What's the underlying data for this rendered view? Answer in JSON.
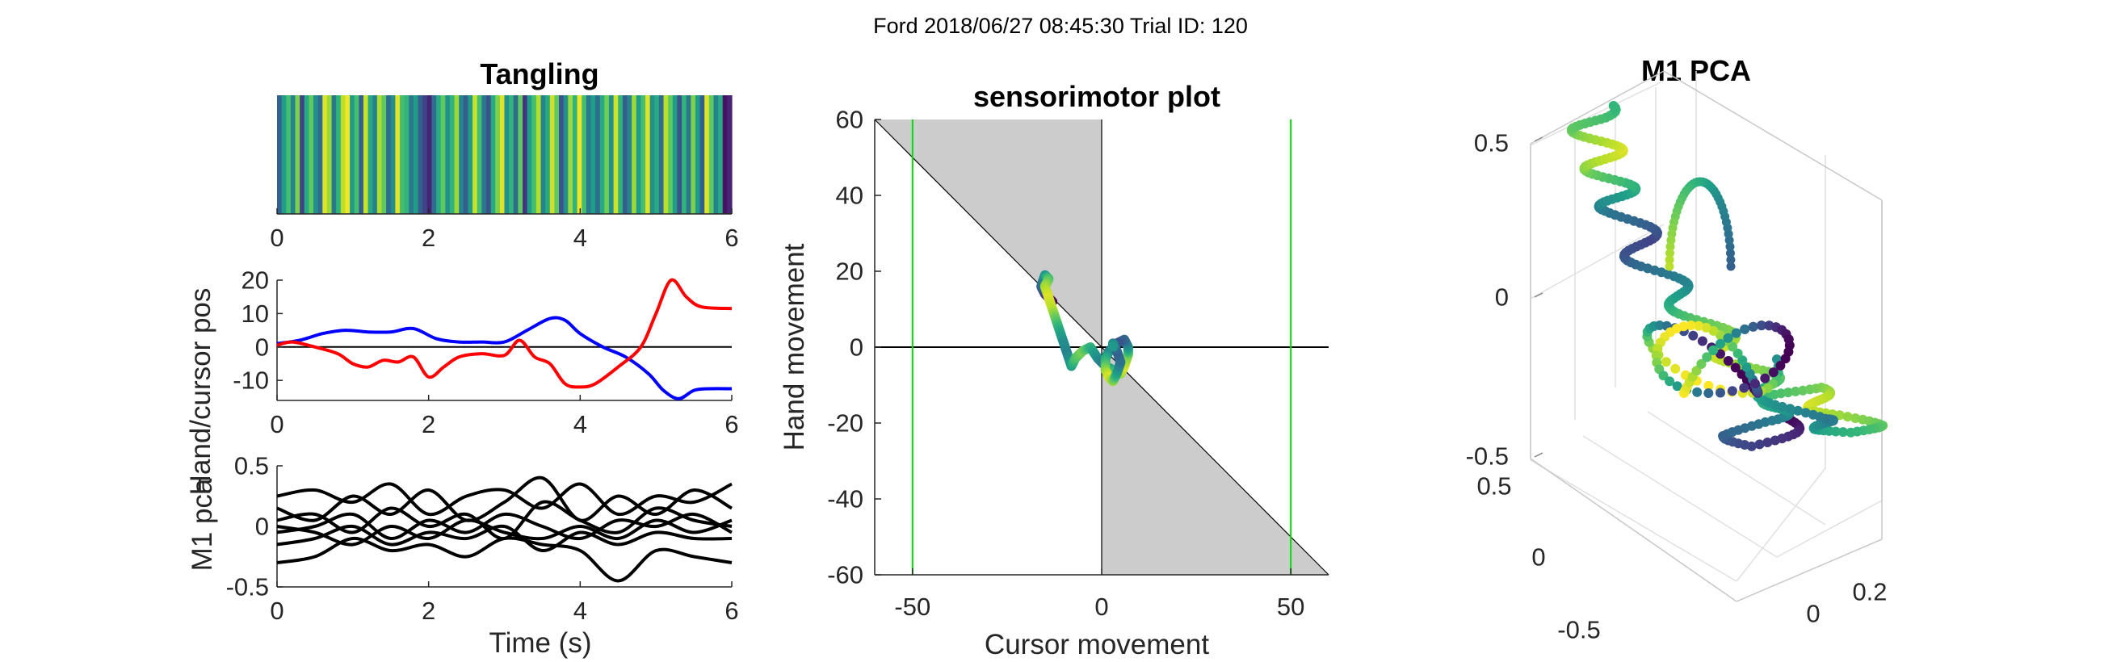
{
  "figure": {
    "suptitle": "Ford 2018/06/27 08:45:30 Trial ID: 120"
  },
  "chart_data": [
    {
      "type": "heatmap",
      "title": "Tangling",
      "xlabel": "",
      "ylabel": "",
      "xlim": [
        0,
        6
      ],
      "xticks": [
        "0",
        "2",
        "4",
        "6"
      ],
      "colormap": "viridis",
      "values": [
        0.3,
        0.55,
        0.7,
        0.45,
        0.8,
        0.2,
        0.6,
        0.75,
        0.5,
        0.35,
        0.95,
        0.85,
        0.4,
        0.65,
        0.9,
        0.98,
        0.55,
        0.7,
        0.3,
        0.92,
        0.6,
        0.45,
        0.88,
        0.75,
        0.35,
        0.5,
        0.96,
        0.7,
        0.65,
        0.4,
        0.55,
        0.3,
        0.2,
        0.1,
        0.35,
        0.6,
        0.75,
        0.5,
        0.65,
        0.85,
        0.45,
        0.3,
        0.55,
        0.92,
        0.7,
        0.4,
        0.25,
        0.6,
        0.8,
        0.95,
        0.5,
        0.65,
        0.35,
        0.75,
        0.15,
        0.55,
        0.7,
        0.88,
        0.45,
        0.6,
        0.93,
        0.75,
        0.25,
        0.5,
        0.85,
        0.65,
        0.98,
        0.7,
        0.4,
        0.55,
        0.35,
        0.6,
        0.78,
        0.5,
        0.93,
        0.65,
        0.3,
        0.45,
        0.85,
        0.55,
        0.7,
        0.95,
        0.5,
        0.6,
        0.35,
        0.9,
        0.75,
        0.55,
        0.25,
        0.65,
        0.4,
        0.8,
        0.55,
        0.3,
        0.95,
        0.75,
        0.45,
        0.6,
        0.05,
        0.1
      ]
    },
    {
      "type": "line",
      "title": "",
      "xlabel": "",
      "ylabel": "Hand/cursor pos",
      "xlim": [
        0,
        6
      ],
      "ylim": [
        -16,
        20
      ],
      "xticks": [
        "0",
        "2",
        "4",
        "6"
      ],
      "yticks": [
        -10,
        0,
        10,
        20
      ],
      "ytick_labels": [
        "-10",
        "0",
        "10",
        "20"
      ],
      "zero_line": true,
      "series": [
        {
          "color": "#0000ff",
          "x": [
            0,
            0.3,
            0.6,
            0.9,
            1.2,
            1.5,
            1.8,
            2.1,
            2.4,
            2.7,
            3.0,
            3.3,
            3.6,
            3.8,
            4.0,
            4.3,
            4.6,
            4.9,
            5.1,
            5.3,
            5.5,
            5.7,
            6.0
          ],
          "y": [
            1,
            2,
            4,
            5,
            4.5,
            4.5,
            5.5,
            2.5,
            1.5,
            1.5,
            1.5,
            5,
            8.5,
            8,
            4,
            0,
            -3,
            -8,
            -13,
            -15.5,
            -13,
            -12.5,
            -12.5
          ]
        },
        {
          "color": "#ff0000",
          "x": [
            0,
            0.2,
            0.5,
            0.8,
            1.0,
            1.2,
            1.4,
            1.6,
            1.8,
            2.0,
            2.2,
            2.4,
            2.7,
            3.0,
            3.2,
            3.4,
            3.6,
            3.8,
            4.0,
            4.2,
            4.5,
            4.8,
            5.0,
            5.2,
            5.4,
            5.6,
            6.0
          ],
          "y": [
            0.5,
            1.5,
            0,
            -2,
            -5,
            -6,
            -4,
            -4.5,
            -3,
            -9,
            -6,
            -3,
            -2,
            -2.5,
            2,
            -3,
            -5,
            -11,
            -12,
            -11,
            -6,
            0,
            10,
            20,
            15,
            12,
            11.5
          ]
        }
      ]
    },
    {
      "type": "line",
      "title": "",
      "xlabel": "Time (s)",
      "ylabel": "M1 pca",
      "xlim": [
        0,
        6
      ],
      "ylim": [
        -0.5,
        0.5
      ],
      "xticks": [
        "0",
        "2",
        "4",
        "6"
      ],
      "yticks": [
        -0.5,
        0,
        0.5
      ],
      "ytick_labels": [
        "-0.5",
        "0",
        "0.5"
      ],
      "series_color": "#000000",
      "x": [
        0,
        0.5,
        1.0,
        1.5,
        2.0,
        2.5,
        3.0,
        3.5,
        4.0,
        4.5,
        5.0,
        5.5,
        6.0
      ],
      "series": [
        {
          "values": [
            0.25,
            0.3,
            0.2,
            0.35,
            0.1,
            0.25,
            0.3,
            0.15,
            0.35,
            0.1,
            0.25,
            0.2,
            0.35
          ]
        },
        {
          "values": [
            0.15,
            0.05,
            0.25,
            0.1,
            0.3,
            0.05,
            0.2,
            0.4,
            0.05,
            0.25,
            0.1,
            0.3,
            0.15
          ]
        },
        {
          "values": [
            0.05,
            0.1,
            -0.05,
            0.15,
            0.0,
            0.1,
            -0.1,
            0.2,
            0.05,
            -0.05,
            0.15,
            0.05,
            0.0
          ]
        },
        {
          "values": [
            -0.05,
            0.0,
            0.1,
            -0.1,
            0.05,
            -0.05,
            0.1,
            0.0,
            -0.1,
            0.05,
            0.0,
            0.1,
            -0.05
          ]
        },
        {
          "values": [
            -0.15,
            -0.1,
            0.0,
            -0.15,
            -0.05,
            -0.1,
            0.0,
            -0.2,
            -0.05,
            -0.15,
            -0.05,
            -0.1,
            -0.1
          ]
        },
        {
          "values": [
            0.0,
            -0.05,
            -0.15,
            0.0,
            -0.1,
            0.05,
            -0.05,
            -0.1,
            0.0,
            -0.1,
            0.05,
            -0.05,
            0.05
          ]
        },
        {
          "values": [
            -0.3,
            -0.25,
            -0.1,
            -0.2,
            -0.15,
            -0.25,
            -0.1,
            -0.15,
            -0.2,
            -0.45,
            -0.2,
            -0.25,
            -0.3
          ]
        }
      ]
    },
    {
      "type": "scatter",
      "title": "sensorimotor plot",
      "xlabel": "Cursor movement",
      "ylabel": "Hand movement",
      "xlim": [
        -60,
        60
      ],
      "ylim": [
        -60,
        60
      ],
      "xticks": [
        -50,
        0,
        50
      ],
      "xtick_labels": [
        "-50",
        "0",
        "50"
      ],
      "yticks": [
        -60,
        -40,
        -20,
        0,
        20,
        40,
        60
      ],
      "ytick_labels": [
        "-60",
        "-40",
        "-20",
        "0",
        "20",
        "40",
        "60"
      ],
      "shaded_region_color": "#cccccc",
      "vertical_reference_lines": [
        -50,
        50
      ],
      "vertical_reference_color": "#00dd00",
      "colormap": "viridis",
      "x": [
        -13,
        -15,
        -16,
        -15,
        -14,
        -15,
        -14,
        -13,
        -12,
        -11,
        -10,
        -9,
        -8,
        -7,
        -5,
        -3,
        -1,
        1,
        3,
        5,
        6,
        7,
        7,
        6,
        4,
        2,
        1,
        1,
        2,
        3,
        4,
        5,
        4,
        3,
        3
      ],
      "y": [
        12,
        14,
        16,
        19,
        18,
        16,
        13,
        10,
        7,
        4,
        1,
        -2,
        -5,
        -3,
        -1,
        0,
        -3,
        -5,
        -6,
        -7,
        -5,
        -2,
        0,
        2,
        1,
        -1,
        -3,
        -6,
        -8,
        -9,
        -7,
        -4,
        -1,
        1,
        0
      ],
      "c": [
        0.0,
        0.15,
        0.3,
        0.5,
        0.7,
        0.85,
        0.95,
        0.9,
        0.75,
        0.6,
        0.5,
        0.45,
        0.55,
        0.7,
        0.8,
        0.65,
        0.5,
        0.4,
        0.6,
        0.85,
        0.95,
        0.8,
        0.55,
        0.35,
        0.25,
        0.4,
        0.6,
        0.8,
        0.95,
        0.85,
        0.6,
        0.4,
        0.3,
        0.45,
        0.55
      ]
    },
    {
      "type": "scatter",
      "title": "M1 PCA",
      "projection": "3d",
      "xlabel": "",
      "ylabel": "",
      "zlabel": "",
      "zticks": [
        "-0.5",
        "0",
        "0.5"
      ],
      "yticks": [
        "0.5",
        "0",
        "-0.5"
      ],
      "xticks": [
        "0",
        "0.2"
      ],
      "colormap": "viridis",
      "trajectory_x": [
        0.3,
        0.26,
        0.21,
        0.17,
        0.2,
        0.25,
        0.28,
        0.3,
        0.34,
        0.38,
        0.42,
        0.46,
        0.51,
        0.49,
        0.44,
        0.39,
        0.35,
        0.3,
        0.26,
        0.22,
        0.19,
        0.16,
        0.12,
        0.08,
        0.05,
        0.02,
        -0.03,
        -0.07,
        -0.1,
        -0.12,
        -0.14,
        -0.16,
        -0.18,
        -0.2,
        -0.21,
        -0.22,
        -0.23,
        -0.24,
        -0.25,
        -0.26,
        -0.27,
        -0.27,
        -0.27
      ],
      "trajectory_y": [
        -0.58,
        -0.62,
        -0.66,
        -0.63,
        -0.59,
        -0.56,
        -0.54,
        -0.51,
        -0.49,
        -0.52,
        -0.55,
        -0.57,
        -0.6,
        -0.62,
        -0.61,
        -0.59,
        -0.58,
        -0.54,
        -0.5,
        -0.47,
        -0.44,
        -0.41,
        -0.38,
        -0.34,
        -0.3,
        -0.26,
        -0.22,
        -0.18,
        -0.14,
        -0.1,
        -0.06,
        -0.02,
        0.02,
        0.05,
        0.08,
        0.11,
        0.14,
        0.17,
        0.2,
        0.23,
        0.26,
        0.29,
        0.33
      ],
      "trajectory_c": [
        0.0,
        0.1,
        0.2,
        0.3,
        0.4,
        0.5,
        0.6,
        0.7,
        0.8,
        0.9,
        0.95,
        0.85,
        0.75,
        0.65,
        0.55,
        0.45,
        0.4,
        0.5,
        0.6,
        0.7,
        0.8,
        0.9,
        0.95,
        0.85,
        0.75,
        0.65,
        0.55,
        0.45,
        0.35,
        0.25,
        0.2,
        0.3,
        0.4,
        0.5,
        0.6,
        0.7,
        0.8,
        0.9,
        0.95,
        0.85,
        0.75,
        0.7,
        0.65
      ]
    }
  ]
}
